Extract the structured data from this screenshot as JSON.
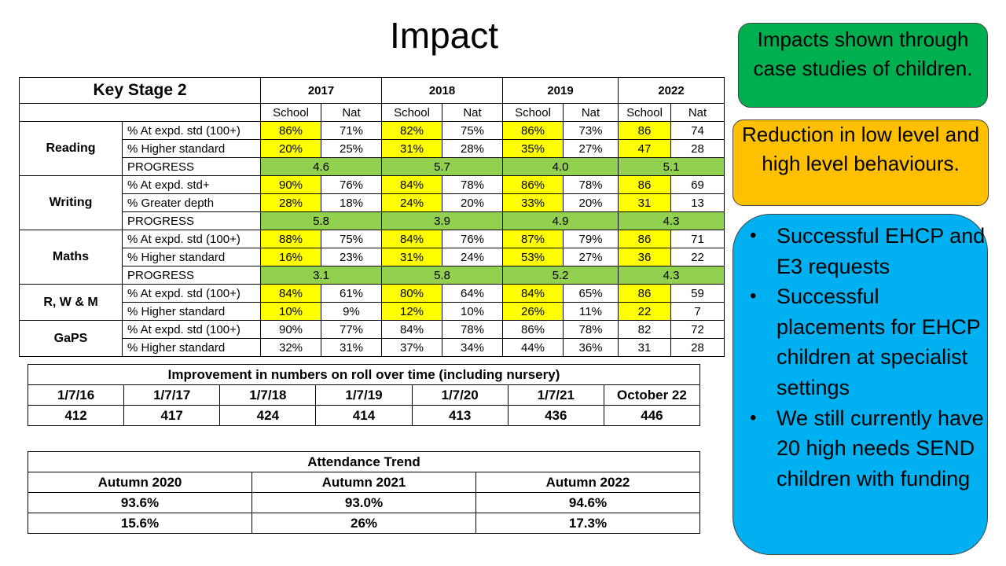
{
  "title": "Impact",
  "ks2": {
    "heading": "Key Stage 2",
    "years": [
      "2017",
      "2018",
      "2019",
      "2022"
    ],
    "school_label": "School",
    "nat_label": "Nat",
    "progress_label": "PROGRESS",
    "subjects": [
      {
        "name": "Reading",
        "rows": [
          {
            "label": "% At expd. std (100+)",
            "values": [
              "86%",
              "71%",
              "82%",
              "75%",
              "86%",
              "73%",
              "86",
              "74"
            ]
          },
          {
            "label": "% Higher standard",
            "values": [
              "20%",
              "25%",
              "31%",
              "28%",
              "35%",
              "27%",
              "47",
              "28"
            ]
          }
        ],
        "progress": [
          "4.6",
          "5.7",
          "4.0",
          "5.1"
        ]
      },
      {
        "name": "Writing",
        "rows": [
          {
            "label": "% At expd. std+",
            "values": [
              "90%",
              "76%",
              "84%",
              "78%",
              "86%",
              "78%",
              "86",
              "69"
            ]
          },
          {
            "label": "% Greater depth",
            "values": [
              "28%",
              "18%",
              "24%",
              "20%",
              "33%",
              "20%",
              "31",
              "13"
            ]
          }
        ],
        "progress": [
          "5.8",
          "3.9",
          "4.9",
          "4.3"
        ]
      },
      {
        "name": "Maths",
        "rows": [
          {
            "label": "% At expd. std (100+)",
            "values": [
              "88%",
              "75%",
              "84%",
              "76%",
              "87%",
              "79%",
              "86",
              "71"
            ]
          },
          {
            "label": "% Higher standard",
            "values": [
              "16%",
              "23%",
              "31%",
              "24%",
              "53%",
              "27%",
              "36",
              "22"
            ]
          }
        ],
        "progress": [
          "3.1",
          "5.8",
          "5.2",
          "4.3"
        ]
      },
      {
        "name": "R, W & M",
        "rows": [
          {
            "label": "% At expd. std (100+)",
            "values": [
              "84%",
              "61%",
              "80%",
              "64%",
              "84%",
              "65%",
              "86",
              "59"
            ]
          },
          {
            "label": "% Higher standard",
            "values": [
              "10%",
              "9%",
              "12%",
              "10%",
              "26%",
              "11%",
              "22",
              "7"
            ]
          }
        ]
      },
      {
        "name": "GaPS",
        "rows": [
          {
            "label": "% At expd. std (100+)",
            "values": [
              "90%",
              "77%",
              "84%",
              "78%",
              "86%",
              "78%",
              "82",
              "72"
            ]
          },
          {
            "label": "% Higher standard",
            "values": [
              "32%",
              "31%",
              "37%",
              "34%",
              "44%",
              "36%",
              "31",
              "28"
            ]
          }
        ]
      }
    ],
    "highlight_color": "#ffff00",
    "progress_color": "#92d050"
  },
  "roll": {
    "heading": "Improvement in numbers on roll over time (including nursery)",
    "dates": [
      "1/7/16",
      "1/7/17",
      "1/7/18",
      "1/7/19",
      "1/7/20",
      "1/7/21",
      "October 22"
    ],
    "values": [
      "412",
      "417",
      "424",
      "414",
      "413",
      "436",
      "446"
    ]
  },
  "attendance": {
    "heading": "Attendance Trend",
    "terms": [
      "Autumn 2020",
      "Autumn 2021",
      "Autumn 2022"
    ],
    "row1": [
      "93.6%",
      "93.0%",
      "94.6%"
    ],
    "row2": [
      "15.6%",
      "26%",
      "17.3%"
    ]
  },
  "boxes": {
    "green": {
      "text": "Impacts shown through case studies of children.",
      "color": "#00b050"
    },
    "orange": {
      "text": "Reduction in low level and high level behaviours.",
      "color": "#ffc000"
    },
    "blue": {
      "color": "#00b0f0",
      "bullets": [
        "Successful EHCP and E3 requests",
        "Successful placements for EHCP children at specialist settings",
        "We still currently have 20 high needs SEND children with funding"
      ]
    }
  }
}
